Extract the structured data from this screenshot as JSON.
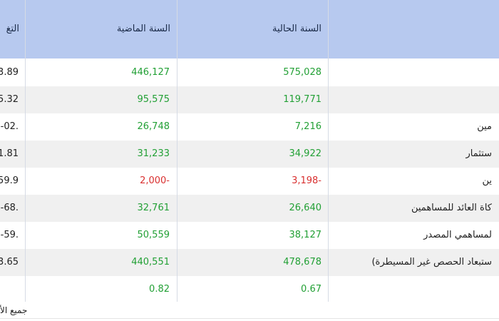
{
  "header": {
    "col_change": "التغ",
    "col_last_year": "السنة الماضية",
    "col_current_year": "السنة الحالية",
    "col_item": ""
  },
  "rows": [
    {
      "label": "",
      "current": "575,028",
      "last": "446,127",
      "change": "3.89",
      "current_color": "green",
      "last_color": "green"
    },
    {
      "label": "",
      "current": "119,771",
      "last": "95,575",
      "change": "5.32",
      "current_color": "green",
      "last_color": "green"
    },
    {
      "label": "مين",
      "current": "7,216",
      "last": "26,748",
      "change": "-02.",
      "current_color": "green",
      "last_color": "green"
    },
    {
      "label": "ستثمار",
      "current": "34,922",
      "last": "31,233",
      "change": "1.81",
      "current_color": "green",
      "last_color": "green"
    },
    {
      "label": "ين",
      "current": "3,198-",
      "last": "2,000-",
      "change": "59.9",
      "current_color": "red",
      "last_color": "red"
    },
    {
      "label": "كاة العائد للمساهمين",
      "current": "26,640",
      "last": "32,761",
      "change": "-68.",
      "current_color": "green",
      "last_color": "green"
    },
    {
      "label": "لمساهمي المصدر",
      "current": "38,127",
      "last": "50,559",
      "change": "-59.",
      "current_color": "green",
      "last_color": "green"
    },
    {
      "label": "ستبعاد الحصص غير المسيطرة)",
      "current": "478,678",
      "last": "440,551",
      "change": "3.65",
      "current_color": "green",
      "last_color": "green"
    },
    {
      "label": "",
      "current": "0.67",
      "last": "0.82",
      "change": "",
      "current_color": "green",
      "last_color": "green"
    }
  ],
  "footer": {
    "note": "جميع الأ"
  },
  "colors": {
    "header_bg": "#b7c9ef",
    "positive": "#22a035",
    "negative": "#d93030",
    "row_stripe": "#f0f0f0"
  }
}
